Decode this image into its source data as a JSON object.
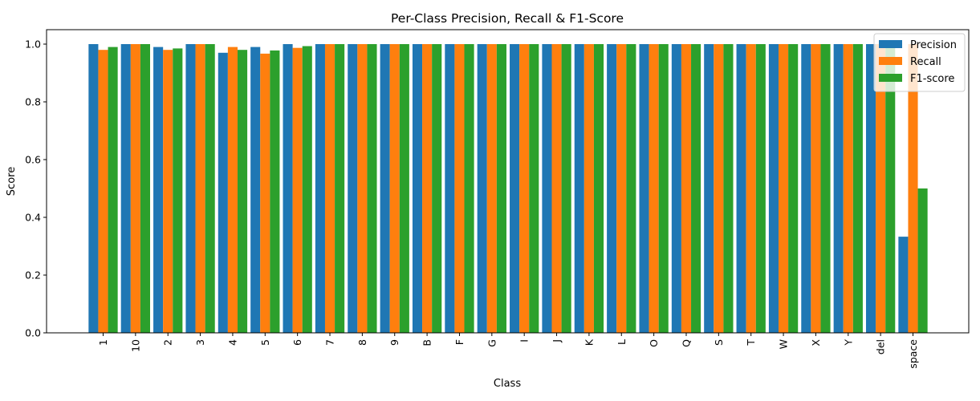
{
  "chart_data": {
    "type": "bar",
    "title": "Per-Class Precision, Recall & F1-Score",
    "xlabel": "Class",
    "ylabel": "Score",
    "ylim": [
      0,
      1.05
    ],
    "yticks": [
      "0.0",
      "0.2",
      "0.4",
      "0.6",
      "0.8",
      "1.0"
    ],
    "legend_position": "top-right",
    "categories": [
      "1",
      "10",
      "2",
      "3",
      "4",
      "5",
      "6",
      "7",
      "8",
      "9",
      "B",
      "F",
      "G",
      "I",
      "J",
      "K",
      "L",
      "O",
      "Q",
      "S",
      "T",
      "W",
      "X",
      "Y",
      "del",
      "space"
    ],
    "series": [
      {
        "name": "Precision",
        "color": "#1f77b4",
        "values": [
          1.0,
          1.0,
          0.99,
          1.0,
          0.97,
          0.99,
          1.0,
          1.0,
          1.0,
          1.0,
          1.0,
          1.0,
          1.0,
          1.0,
          1.0,
          1.0,
          1.0,
          1.0,
          1.0,
          1.0,
          1.0,
          1.0,
          1.0,
          1.0,
          1.0,
          0.333
        ]
      },
      {
        "name": "Recall",
        "color": "#ff7f0e",
        "values": [
          0.98,
          1.0,
          0.98,
          1.0,
          0.99,
          0.967,
          0.987,
          1.0,
          1.0,
          1.0,
          1.0,
          1.0,
          1.0,
          1.0,
          1.0,
          1.0,
          1.0,
          1.0,
          1.0,
          1.0,
          1.0,
          1.0,
          1.0,
          1.0,
          1.0,
          1.0
        ]
      },
      {
        "name": "F1-score",
        "color": "#2ca02c",
        "values": [
          0.99,
          1.0,
          0.985,
          1.0,
          0.98,
          0.978,
          0.993,
          1.0,
          1.0,
          1.0,
          1.0,
          1.0,
          1.0,
          1.0,
          1.0,
          1.0,
          1.0,
          1.0,
          1.0,
          1.0,
          1.0,
          1.0,
          1.0,
          1.0,
          1.0,
          0.5
        ]
      }
    ]
  }
}
